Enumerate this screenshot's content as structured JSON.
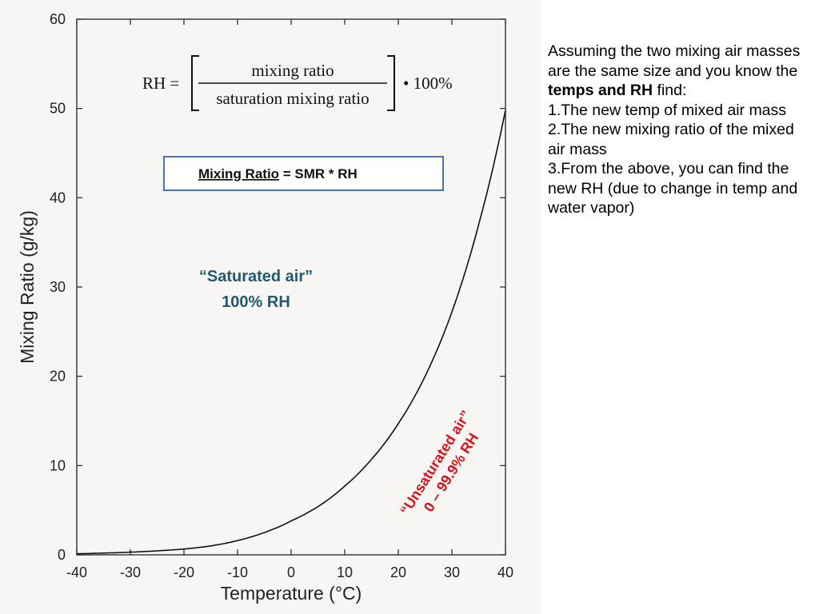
{
  "side_panel": {
    "intro_prefix": "Assuming the two mixing air masses are the same size and you know the ",
    "intro_bold": "temps and RH",
    "intro_suffix": " find:",
    "items": [
      "1.The new temp of mixed air mass",
      "2.The new mixing ratio of the mixed air mass",
      "3.From the above, you can find the new RH (due to change in temp and water vapor)"
    ]
  },
  "formula": {
    "lhs": "RH =",
    "numerator": "mixing ratio",
    "denominator": "saturation mixing ratio",
    "multiplier": "• 100%"
  },
  "note_box": {
    "underlined": "Mixing Ratio",
    "rest": " = SMR * RH",
    "border_color": "#4472c4"
  },
  "annotations": {
    "saturated_line1": "“Saturated air”",
    "saturated_line2": "100% RH",
    "unsaturated_line1": "“Unsaturated air”",
    "unsaturated_line2": "0 – 99.9% RH",
    "saturated_color": "#1f5a6e",
    "unsaturated_color": "#d2141c"
  },
  "chart_data": {
    "type": "line",
    "title": "",
    "xlabel": "Temperature (°C)",
    "ylabel": "Mixing Ratio (g/kg)",
    "xlim": [
      -40,
      40
    ],
    "ylim": [
      0,
      60
    ],
    "x_ticks": [
      -40,
      -30,
      -20,
      -10,
      0,
      10,
      20,
      30,
      40
    ],
    "y_ticks": [
      0,
      10,
      20,
      30,
      40,
      50,
      60
    ],
    "grid": false,
    "series": [
      {
        "x": [
          -40,
          -35,
          -30,
          -25,
          -20,
          -15,
          -10,
          -5,
          0,
          5,
          10,
          15,
          20,
          25,
          30,
          35,
          40
        ],
        "values": [
          0.12,
          0.2,
          0.3,
          0.45,
          0.65,
          1.0,
          1.6,
          2.5,
          3.8,
          5.4,
          7.7,
          10.7,
          14.7,
          20.0,
          27.2,
          37.0,
          49.8
        ]
      }
    ]
  }
}
